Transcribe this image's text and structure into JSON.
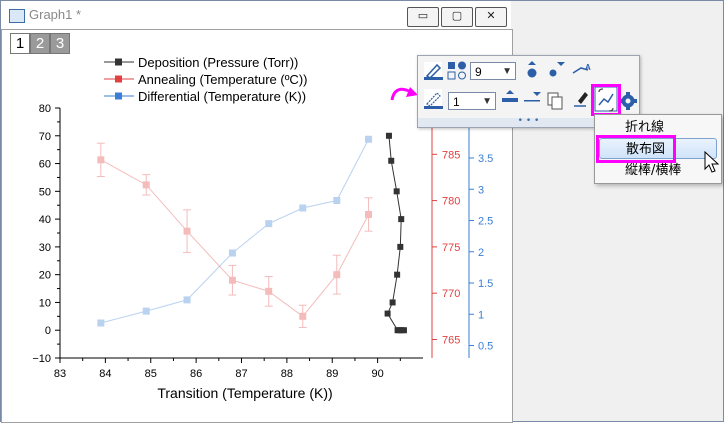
{
  "window": {
    "title": "Graph1 *",
    "buttons": [
      "▭",
      "▢",
      "✕"
    ]
  },
  "layers": [
    "1",
    "2",
    "3"
  ],
  "legend": [
    {
      "label": "Deposition (Pressure (Torr))",
      "color": "#333333"
    },
    {
      "label": "Annealing (Temperature (ºC))",
      "color": "#e04040"
    },
    {
      "label": "Differential (Temperature (K))",
      "color": "#3a7fd5"
    }
  ],
  "toolbar": {
    "size_value": "9",
    "width_value": "1"
  },
  "context_menu": {
    "items": [
      "折れ線",
      "散布図",
      "縦棒/横棒"
    ],
    "selected_index": 1
  },
  "chart_data": {
    "type": "line",
    "xlabel": "Transition (Temperature (K))",
    "xlim": [
      83,
      91
    ],
    "x_ticks": [
      "83",
      "84",
      "85",
      "86",
      "87",
      "88",
      "89",
      "90"
    ],
    "y_left": {
      "lim": [
        -10,
        80
      ],
      "ticks": [
        "−10",
        "0",
        "10",
        "20",
        "30",
        "40",
        "50",
        "60",
        "70",
        "80"
      ],
      "color": "#333333"
    },
    "y_red": {
      "lim": [
        763,
        790
      ],
      "ticks": [
        "765",
        "770",
        "775",
        "780",
        "785"
      ],
      "color": "#e04040"
    },
    "y_blue": {
      "lim": [
        0.3,
        4.3
      ],
      "ticks": [
        "0.5",
        "1",
        "1.5",
        "2",
        "2.5",
        "3",
        "3.5"
      ],
      "color": "#3a7fd5"
    },
    "series": [
      {
        "name": "Deposition (Pressure (Torr))",
        "axis": "left",
        "color": "#333333",
        "x": [
          90.25,
          90.3,
          90.42,
          90.52,
          90.5,
          90.43,
          90.33,
          90.22,
          90.44,
          90.48,
          90.53,
          90.58
        ],
        "y": [
          70,
          61,
          50,
          40,
          30,
          20,
          10,
          6,
          0,
          0,
          0,
          0
        ]
      },
      {
        "name": "Annealing (Temperature (ºC))",
        "axis": "red",
        "color": "#e04040",
        "x": [
          83.9,
          84.9,
          85.8,
          86.8,
          87.6,
          88.35,
          89.1,
          89.8
        ],
        "y": [
          784.4,
          781.7,
          776.7,
          771.4,
          770.2,
          767.5,
          772.0,
          778.5
        ],
        "err": [
          1.8,
          1.1,
          2.3,
          1.6,
          1.6,
          1.2,
          2.1,
          1.8
        ]
      },
      {
        "name": "Differential (Temperature (K))",
        "axis": "blue",
        "color": "#3a7fd5",
        "x": [
          83.9,
          84.9,
          85.8,
          86.8,
          87.6,
          88.35,
          89.1,
          89.8
        ],
        "y": [
          0.86,
          1.05,
          1.23,
          1.98,
          2.45,
          2.7,
          2.82,
          3.8
        ]
      }
    ]
  }
}
